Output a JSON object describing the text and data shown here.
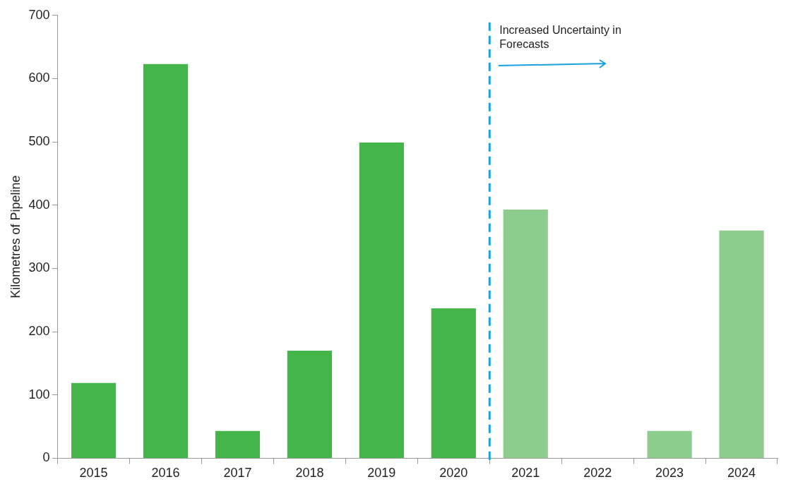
{
  "chart_data": {
    "type": "bar",
    "ylabel": "Kilometres of Pipeline",
    "categories": [
      "2015",
      "2016",
      "2017",
      "2018",
      "2019",
      "2020",
      "2021",
      "2022",
      "2023",
      "2024"
    ],
    "values": [
      119,
      623,
      43,
      170,
      499,
      237,
      393,
      0,
      43,
      360
    ],
    "colors": [
      "#44b649",
      "#44b649",
      "#44b649",
      "#44b649",
      "#44b649",
      "#44b649",
      "#8ccc8c",
      "#8ccc8c",
      "#8ccc8c",
      "#8ccc8c"
    ],
    "ylim": [
      0,
      700
    ],
    "yticks": [
      0,
      100,
      200,
      300,
      400,
      500,
      600,
      700
    ],
    "grid": false,
    "legend": false,
    "ref_lines": [
      {
        "axis": "x",
        "value": "2021",
        "label": "Increased Uncertainty in Forecasts",
        "color": "#1ba1e2",
        "line_style": "dashed"
      }
    ]
  }
}
